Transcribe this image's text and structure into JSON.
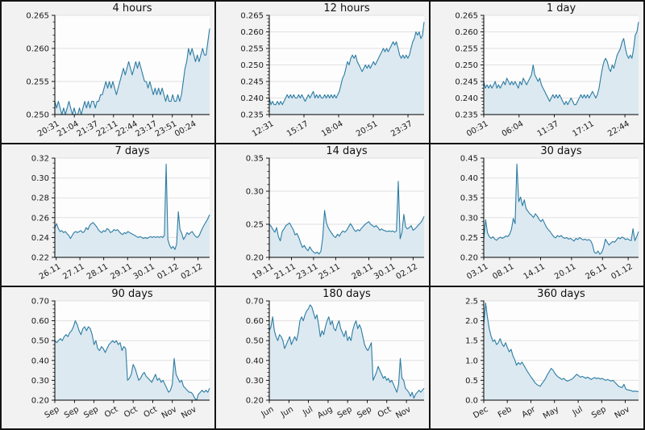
{
  "colors": {
    "line": "#2d7ca3",
    "fill": "#dce9f1",
    "grid": "#e0e0e0",
    "panel_bg": "#f2f2f2",
    "plot_bg": "#fdfdfd",
    "border": "#141414",
    "text": "#1a1a1a"
  },
  "chart_data": [
    {
      "type": "area",
      "title": "4 hours",
      "ylim": [
        0.25,
        0.265
      ],
      "yticks": [
        0.25,
        0.255,
        0.26,
        0.265
      ],
      "ytick_labels": [
        "0.250",
        "0.255",
        "0.260",
        "0.265"
      ],
      "minor_per_major": 4,
      "xtick_pos": [
        0.0,
        0.126,
        0.253,
        0.379,
        0.506,
        0.632,
        0.759,
        0.885
      ],
      "xtick_labels": [
        "20:31",
        "21:04",
        "21:37",
        "22:11",
        "22:44",
        "23:17",
        "23:51",
        "00:24"
      ],
      "values": [
        0.252,
        0.251,
        0.252,
        0.251,
        0.25,
        0.251,
        0.25,
        0.251,
        0.252,
        0.251,
        0.25,
        0.251,
        0.25,
        0.25,
        0.251,
        0.25,
        0.251,
        0.252,
        0.251,
        0.252,
        0.251,
        0.252,
        0.252,
        0.251,
        0.252,
        0.252,
        0.253,
        0.253,
        0.254,
        0.255,
        0.254,
        0.255,
        0.254,
        0.255,
        0.254,
        0.253,
        0.254,
        0.255,
        0.256,
        0.257,
        0.256,
        0.257,
        0.258,
        0.257,
        0.256,
        0.257,
        0.258,
        0.257,
        0.258,
        0.257,
        0.256,
        0.255,
        0.255,
        0.254,
        0.255,
        0.254,
        0.253,
        0.254,
        0.253,
        0.254,
        0.253,
        0.254,
        0.253,
        0.252,
        0.253,
        0.252,
        0.252,
        0.253,
        0.252,
        0.252,
        0.253,
        0.252,
        0.253,
        0.255,
        0.257,
        0.258,
        0.26,
        0.259,
        0.26,
        0.259,
        0.258,
        0.259,
        0.258,
        0.259,
        0.26,
        0.259,
        0.259,
        0.261,
        0.263
      ]
    },
    {
      "type": "area",
      "title": "12 hours",
      "ylim": [
        0.235,
        0.265
      ],
      "yticks": [
        0.235,
        0.24,
        0.245,
        0.25,
        0.255,
        0.26,
        0.265
      ],
      "ytick_labels": [
        "0.235",
        "0.240",
        "0.245",
        "0.250",
        "0.255",
        "0.260",
        "0.265"
      ],
      "minor_per_major": 4,
      "xtick_pos": [
        0.0,
        0.224,
        0.448,
        0.672,
        0.896
      ],
      "xtick_labels": [
        "12:31",
        "15:17",
        "18:04",
        "20:51",
        "23:37"
      ],
      "values": [
        0.24,
        0.238,
        0.239,
        0.238,
        0.238,
        0.239,
        0.238,
        0.239,
        0.238,
        0.239,
        0.24,
        0.241,
        0.24,
        0.241,
        0.24,
        0.241,
        0.24,
        0.24,
        0.241,
        0.24,
        0.241,
        0.24,
        0.239,
        0.24,
        0.241,
        0.24,
        0.241,
        0.242,
        0.24,
        0.241,
        0.24,
        0.241,
        0.24,
        0.24,
        0.241,
        0.24,
        0.241,
        0.24,
        0.241,
        0.24,
        0.241,
        0.24,
        0.241,
        0.242,
        0.244,
        0.246,
        0.247,
        0.249,
        0.251,
        0.25,
        0.252,
        0.253,
        0.252,
        0.253,
        0.251,
        0.25,
        0.249,
        0.248,
        0.249,
        0.25,
        0.249,
        0.25,
        0.249,
        0.25,
        0.251,
        0.25,
        0.251,
        0.252,
        0.253,
        0.254,
        0.255,
        0.254,
        0.255,
        0.254,
        0.255,
        0.256,
        0.257,
        0.256,
        0.257,
        0.255,
        0.253,
        0.252,
        0.253,
        0.252,
        0.253,
        0.252,
        0.253,
        0.255,
        0.257,
        0.258,
        0.26,
        0.259,
        0.26,
        0.258,
        0.259,
        0.263
      ]
    },
    {
      "type": "area",
      "title": "1 day",
      "ylim": [
        0.235,
        0.265
      ],
      "yticks": [
        0.235,
        0.24,
        0.245,
        0.25,
        0.255,
        0.26,
        0.265
      ],
      "ytick_labels": [
        "0.235",
        "0.240",
        "0.245",
        "0.250",
        "0.255",
        "0.260",
        "0.265"
      ],
      "minor_per_major": 4,
      "xtick_pos": [
        0.0,
        0.228,
        0.456,
        0.684,
        0.912
      ],
      "xtick_labels": [
        "00:31",
        "06:04",
        "11:37",
        "17:11",
        "22:44"
      ],
      "values": [
        0.245,
        0.243,
        0.244,
        0.243,
        0.244,
        0.243,
        0.244,
        0.245,
        0.243,
        0.244,
        0.243,
        0.244,
        0.245,
        0.244,
        0.246,
        0.245,
        0.244,
        0.245,
        0.244,
        0.245,
        0.244,
        0.243,
        0.245,
        0.244,
        0.246,
        0.245,
        0.244,
        0.245,
        0.246,
        0.247,
        0.25,
        0.247,
        0.246,
        0.245,
        0.246,
        0.244,
        0.243,
        0.242,
        0.241,
        0.24,
        0.239,
        0.24,
        0.241,
        0.24,
        0.241,
        0.24,
        0.241,
        0.24,
        0.239,
        0.238,
        0.239,
        0.238,
        0.239,
        0.24,
        0.239,
        0.238,
        0.238,
        0.239,
        0.24,
        0.241,
        0.24,
        0.241,
        0.24,
        0.241,
        0.24,
        0.241,
        0.242,
        0.241,
        0.24,
        0.241,
        0.243,
        0.246,
        0.249,
        0.251,
        0.252,
        0.251,
        0.249,
        0.248,
        0.25,
        0.249,
        0.251,
        0.253,
        0.254,
        0.255,
        0.257,
        0.258,
        0.255,
        0.253,
        0.252,
        0.253,
        0.252,
        0.255,
        0.259,
        0.26,
        0.263
      ]
    },
    {
      "type": "area",
      "title": "7 days",
      "ylim": [
        0.22,
        0.32
      ],
      "yticks": [
        0.22,
        0.24,
        0.26,
        0.28,
        0.3,
        0.32
      ],
      "ytick_labels": [
        "0.22",
        "0.24",
        "0.26",
        "0.28",
        "0.30",
        "0.32"
      ],
      "minor_per_major": 3,
      "xtick_pos": [
        0.009,
        0.162,
        0.316,
        0.47,
        0.617,
        0.772,
        0.925
      ],
      "xtick_labels": [
        "26.11",
        "27.11",
        "28.11",
        "29.11",
        "30.11",
        "01.12",
        "02.12"
      ],
      "values": [
        0.25,
        0.254,
        0.249,
        0.246,
        0.247,
        0.245,
        0.246,
        0.244,
        0.242,
        0.239,
        0.242,
        0.245,
        0.246,
        0.245,
        0.246,
        0.247,
        0.245,
        0.246,
        0.25,
        0.248,
        0.252,
        0.254,
        0.255,
        0.253,
        0.251,
        0.248,
        0.246,
        0.245,
        0.247,
        0.246,
        0.249,
        0.248,
        0.245,
        0.246,
        0.248,
        0.247,
        0.248,
        0.246,
        0.244,
        0.243,
        0.245,
        0.244,
        0.246,
        0.245,
        0.244,
        0.243,
        0.242,
        0.241,
        0.24,
        0.241,
        0.24,
        0.239,
        0.24,
        0.239,
        0.24,
        0.241,
        0.24,
        0.241,
        0.24,
        0.241,
        0.24,
        0.241,
        0.24,
        0.242,
        0.314,
        0.238,
        0.232,
        0.229,
        0.231,
        0.228,
        0.233,
        0.266,
        0.248,
        0.244,
        0.238,
        0.241,
        0.245,
        0.243,
        0.245,
        0.246,
        0.243,
        0.241,
        0.24,
        0.242,
        0.246,
        0.25,
        0.253,
        0.256,
        0.259,
        0.263
      ]
    },
    {
      "type": "area",
      "title": "14 days",
      "ylim": [
        0.2,
        0.35
      ],
      "yticks": [
        0.2,
        0.25,
        0.3,
        0.35
      ],
      "ytick_labels": [
        "0.20",
        "0.25",
        "0.30",
        "0.35"
      ],
      "minor_per_major": 4,
      "xtick_pos": [
        0.0,
        0.143,
        0.286,
        0.429,
        0.643,
        0.786,
        0.929
      ],
      "xtick_labels": [
        "19.11",
        "21.11",
        "23.11",
        "25.11",
        "28.11",
        "30.11",
        "02.12"
      ],
      "values": [
        0.25,
        0.247,
        0.242,
        0.238,
        0.245,
        0.231,
        0.225,
        0.239,
        0.243,
        0.248,
        0.25,
        0.252,
        0.247,
        0.242,
        0.234,
        0.236,
        0.23,
        0.222,
        0.215,
        0.218,
        0.213,
        0.21,
        0.216,
        0.211,
        0.208,
        0.206,
        0.208,
        0.205,
        0.209,
        0.23,
        0.271,
        0.252,
        0.245,
        0.24,
        0.236,
        0.232,
        0.23,
        0.235,
        0.232,
        0.237,
        0.24,
        0.238,
        0.241,
        0.246,
        0.251,
        0.247,
        0.242,
        0.239,
        0.242,
        0.24,
        0.244,
        0.247,
        0.25,
        0.252,
        0.254,
        0.25,
        0.248,
        0.246,
        0.248,
        0.245,
        0.241,
        0.243,
        0.241,
        0.24,
        0.239,
        0.24,
        0.239,
        0.24,
        0.238,
        0.24,
        0.315,
        0.228,
        0.238,
        0.265,
        0.246,
        0.243,
        0.245,
        0.248,
        0.241,
        0.243,
        0.246,
        0.249,
        0.252,
        0.256,
        0.262
      ]
    },
    {
      "type": "area",
      "title": "30 days",
      "ylim": [
        0.2,
        0.45
      ],
      "yticks": [
        0.2,
        0.25,
        0.3,
        0.35,
        0.4,
        0.45
      ],
      "ytick_labels": [
        "0.20",
        "0.25",
        "0.30",
        "0.35",
        "0.40",
        "0.45"
      ],
      "minor_per_major": 4,
      "xtick_pos": [
        0.0,
        0.167,
        0.367,
        0.567,
        0.767,
        0.933
      ],
      "xtick_labels": [
        "03.11",
        "08.11",
        "14.11",
        "20.11",
        "26.11",
        "01.12"
      ],
      "values": [
        0.246,
        0.295,
        0.262,
        0.252,
        0.248,
        0.252,
        0.246,
        0.243,
        0.248,
        0.251,
        0.248,
        0.25,
        0.254,
        0.252,
        0.258,
        0.27,
        0.298,
        0.285,
        0.435,
        0.34,
        0.352,
        0.33,
        0.345,
        0.322,
        0.316,
        0.31,
        0.306,
        0.3,
        0.31,
        0.304,
        0.296,
        0.29,
        0.296,
        0.286,
        0.276,
        0.27,
        0.265,
        0.258,
        0.252,
        0.249,
        0.255,
        0.252,
        0.255,
        0.25,
        0.248,
        0.25,
        0.246,
        0.248,
        0.245,
        0.241,
        0.248,
        0.245,
        0.25,
        0.247,
        0.244,
        0.246,
        0.243,
        0.245,
        0.242,
        0.232,
        0.213,
        0.21,
        0.216,
        0.208,
        0.212,
        0.225,
        0.246,
        0.238,
        0.231,
        0.236,
        0.24,
        0.238,
        0.244,
        0.25,
        0.247,
        0.251,
        0.249,
        0.245,
        0.247,
        0.244,
        0.242,
        0.272,
        0.242,
        0.252,
        0.265
      ]
    },
    {
      "type": "area",
      "title": "90 days",
      "ylim": [
        0.2,
        0.7
      ],
      "yticks": [
        0.2,
        0.3,
        0.4,
        0.5,
        0.6,
        0.7
      ],
      "ytick_labels": [
        "0.20",
        "0.30",
        "0.40",
        "0.50",
        "0.60",
        "0.70"
      ],
      "minor_per_major": 4,
      "xtick_pos": [
        0.0,
        0.127,
        0.253,
        0.38,
        0.506,
        0.633,
        0.759,
        0.886
      ],
      "xtick_labels": [
        "Sep",
        "Sep",
        "Sep",
        "Oct",
        "Oct",
        "Oct",
        "Nov",
        "Nov"
      ],
      "values": [
        0.5,
        0.49,
        0.5,
        0.51,
        0.5,
        0.52,
        0.53,
        0.52,
        0.54,
        0.55,
        0.57,
        0.6,
        0.58,
        0.55,
        0.53,
        0.56,
        0.57,
        0.55,
        0.57,
        0.56,
        0.53,
        0.48,
        0.5,
        0.46,
        0.45,
        0.47,
        0.46,
        0.44,
        0.46,
        0.48,
        0.49,
        0.5,
        0.49,
        0.5,
        0.48,
        0.49,
        0.45,
        0.47,
        0.46,
        0.3,
        0.31,
        0.33,
        0.38,
        0.36,
        0.33,
        0.3,
        0.31,
        0.33,
        0.34,
        0.32,
        0.31,
        0.3,
        0.29,
        0.31,
        0.33,
        0.3,
        0.31,
        0.29,
        0.3,
        0.28,
        0.26,
        0.24,
        0.25,
        0.28,
        0.41,
        0.33,
        0.31,
        0.29,
        0.3,
        0.27,
        0.26,
        0.25,
        0.24,
        0.24,
        0.23,
        0.21,
        0.2,
        0.23,
        0.24,
        0.25,
        0.24,
        0.25,
        0.24,
        0.26
      ]
    },
    {
      "type": "area",
      "title": "180 days",
      "ylim": [
        0.2,
        0.7
      ],
      "yticks": [
        0.2,
        0.3,
        0.4,
        0.5,
        0.6,
        0.7
      ],
      "ytick_labels": [
        "0.20",
        "0.30",
        "0.40",
        "0.50",
        "0.60",
        "0.70"
      ],
      "minor_per_major": 4,
      "xtick_pos": [
        0.0,
        0.127,
        0.253,
        0.38,
        0.506,
        0.633,
        0.759,
        0.886
      ],
      "xtick_labels": [
        "Jun",
        "Jun",
        "Jul",
        "Aug",
        "Sep",
        "Sep",
        "Oct",
        "Nov"
      ],
      "values": [
        0.55,
        0.57,
        0.62,
        0.55,
        0.52,
        0.5,
        0.53,
        0.52,
        0.5,
        0.46,
        0.48,
        0.5,
        0.52,
        0.48,
        0.5,
        0.52,
        0.5,
        0.54,
        0.6,
        0.62,
        0.6,
        0.63,
        0.65,
        0.66,
        0.68,
        0.67,
        0.64,
        0.61,
        0.63,
        0.58,
        0.52,
        0.55,
        0.53,
        0.57,
        0.6,
        0.62,
        0.58,
        0.6,
        0.56,
        0.55,
        0.58,
        0.6,
        0.56,
        0.54,
        0.52,
        0.55,
        0.5,
        0.52,
        0.5,
        0.55,
        0.58,
        0.6,
        0.56,
        0.58,
        0.56,
        0.52,
        0.48,
        0.46,
        0.45,
        0.47,
        0.49,
        0.3,
        0.32,
        0.34,
        0.37,
        0.35,
        0.33,
        0.31,
        0.32,
        0.3,
        0.31,
        0.29,
        0.3,
        0.28,
        0.26,
        0.24,
        0.28,
        0.41,
        0.31,
        0.3,
        0.26,
        0.25,
        0.24,
        0.22,
        0.24,
        0.21,
        0.23,
        0.24,
        0.25,
        0.24,
        0.25,
        0.26
      ]
    },
    {
      "type": "area",
      "title": "360 days",
      "ylim": [
        0.0,
        2.5
      ],
      "yticks": [
        0.0,
        0.5,
        1.0,
        1.5,
        2.0,
        2.5
      ],
      "ytick_labels": [
        "0.0",
        "0.5",
        "1.0",
        "1.5",
        "2.0",
        "2.5"
      ],
      "minor_per_major": 4,
      "xtick_pos": [
        0.0,
        0.152,
        0.305,
        0.457,
        0.61,
        0.762,
        0.914
      ],
      "xtick_labels": [
        "Dec",
        "Feb",
        "Apr",
        "May",
        "Jul",
        "Sep",
        "Nov"
      ],
      "values": [
        1.9,
        2.45,
        2.1,
        1.8,
        1.62,
        1.48,
        1.52,
        1.4,
        1.45,
        1.55,
        1.42,
        1.35,
        1.45,
        1.32,
        1.22,
        1.28,
        1.12,
        1.02,
        0.88,
        0.95,
        0.9,
        0.96,
        0.88,
        0.8,
        0.72,
        0.65,
        0.58,
        0.52,
        0.45,
        0.4,
        0.37,
        0.35,
        0.42,
        0.48,
        0.55,
        0.65,
        0.72,
        0.8,
        0.76,
        0.68,
        0.62,
        0.58,
        0.55,
        0.52,
        0.55,
        0.5,
        0.48,
        0.5,
        0.52,
        0.55,
        0.6,
        0.65,
        0.62,
        0.58,
        0.6,
        0.58,
        0.55,
        0.58,
        0.55,
        0.52,
        0.55,
        0.57,
        0.54,
        0.56,
        0.53,
        0.55,
        0.52,
        0.5,
        0.52,
        0.5,
        0.48,
        0.5,
        0.45,
        0.4,
        0.35,
        0.33,
        0.32,
        0.4,
        0.28,
        0.26,
        0.25,
        0.24,
        0.22,
        0.23,
        0.22,
        0.22
      ]
    }
  ]
}
